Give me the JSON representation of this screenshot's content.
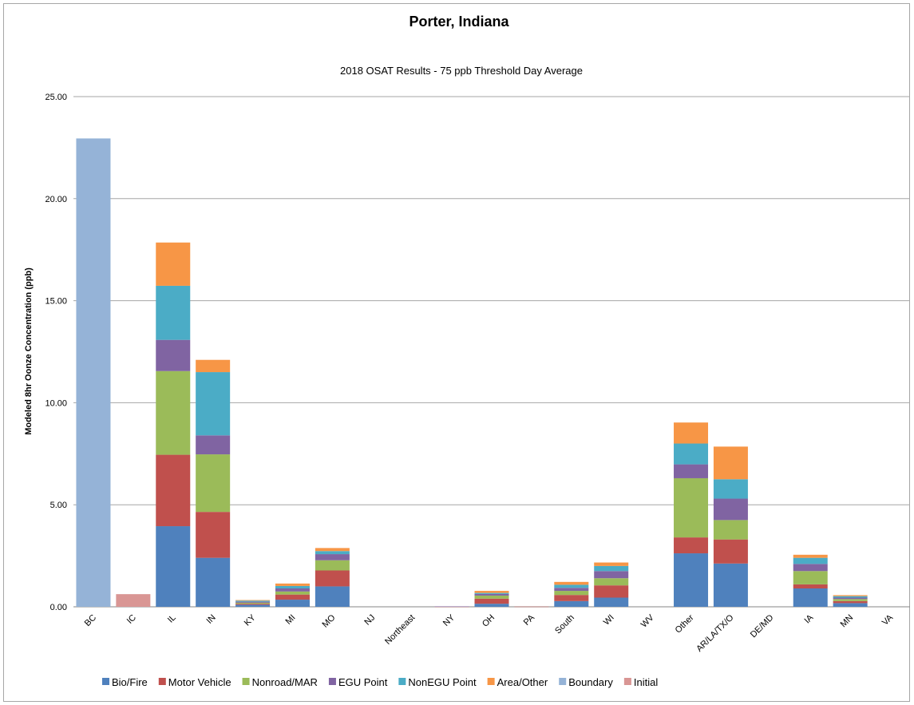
{
  "chart_data": {
    "type": "bar",
    "stacked": true,
    "title": "Porter, Indiana",
    "subtitle": "2018 OSAT Results - 75 ppb Threshold Day Average",
    "xlabel": "",
    "ylabel": "Modeled 8hr Oonze Concentration (ppb)",
    "ylim": [
      0,
      25
    ],
    "yticks": [
      "0.00",
      "5.00",
      "10.00",
      "15.00",
      "20.00",
      "25.00"
    ],
    "grid": true,
    "legend_position": "bottom",
    "categories": [
      "BC",
      "IC",
      "IL",
      "IN",
      "KY",
      "MI",
      "MO",
      "NJ",
      "Northeast",
      "NY",
      "OH",
      "PA",
      "South",
      "WI",
      "WV",
      "Other",
      "AR/LA/TX/O",
      "DE/MD",
      "IA",
      "MN",
      "VA"
    ],
    "series": [
      {
        "name": "Bio/Fire",
        "color": "#4f81bd",
        "values": [
          0,
          0,
          3.95,
          2.4,
          0.1,
          0.35,
          1.0,
          0,
          0,
          0,
          0.15,
          0,
          0.28,
          0.45,
          0,
          2.62,
          2.12,
          0,
          0.9,
          0.18,
          0
        ]
      },
      {
        "name": "Motor Vehicle",
        "color": "#c0504d",
        "values": [
          0,
          0,
          3.5,
          2.25,
          0.05,
          0.25,
          0.78,
          0,
          0,
          0.01,
          0.25,
          0.01,
          0.3,
          0.6,
          0,
          0.78,
          1.18,
          0,
          0.2,
          0.1,
          0
        ]
      },
      {
        "name": "Nonroad/MAR",
        "color": "#9bbb59",
        "values": [
          0,
          0,
          4.1,
          2.82,
          0.05,
          0.15,
          0.5,
          0,
          0,
          0,
          0.15,
          0,
          0.2,
          0.35,
          0,
          2.9,
          0.95,
          0,
          0.65,
          0.1,
          0
        ]
      },
      {
        "name": "EGU Point",
        "color": "#8064a2",
        "values": [
          0,
          0,
          1.53,
          0.93,
          0.05,
          0.15,
          0.3,
          0,
          0,
          0.01,
          0.08,
          0,
          0.15,
          0.35,
          0,
          0.68,
          1.05,
          0,
          0.35,
          0.07,
          0
        ]
      },
      {
        "name": "NonEGU Point",
        "color": "#4bacc6",
        "values": [
          0,
          0,
          2.65,
          3.1,
          0.05,
          0.12,
          0.15,
          0,
          0,
          0,
          0.05,
          0,
          0.15,
          0.25,
          0,
          1.02,
          0.95,
          0,
          0.3,
          0.07,
          0
        ]
      },
      {
        "name": "Area/Other",
        "color": "#f79646",
        "values": [
          0,
          0,
          2.12,
          0.6,
          0.03,
          0.12,
          0.15,
          0,
          0,
          0,
          0.1,
          0,
          0.14,
          0.17,
          0,
          1.03,
          1.6,
          0,
          0.15,
          0.05,
          0
        ]
      },
      {
        "name": "Boundary",
        "color": "#95b3d7",
        "values": [
          22.95,
          0,
          0,
          0,
          0,
          0,
          0,
          0,
          0,
          0,
          0,
          0,
          0,
          0,
          0,
          0,
          0,
          0,
          0,
          0,
          0
        ]
      },
      {
        "name": "Initial",
        "color": "#d99694",
        "values": [
          0,
          0.62,
          0,
          0,
          0,
          0,
          0,
          0,
          0,
          0,
          0,
          0,
          0,
          0,
          0,
          0,
          0,
          0,
          0,
          0,
          0
        ]
      }
    ]
  }
}
